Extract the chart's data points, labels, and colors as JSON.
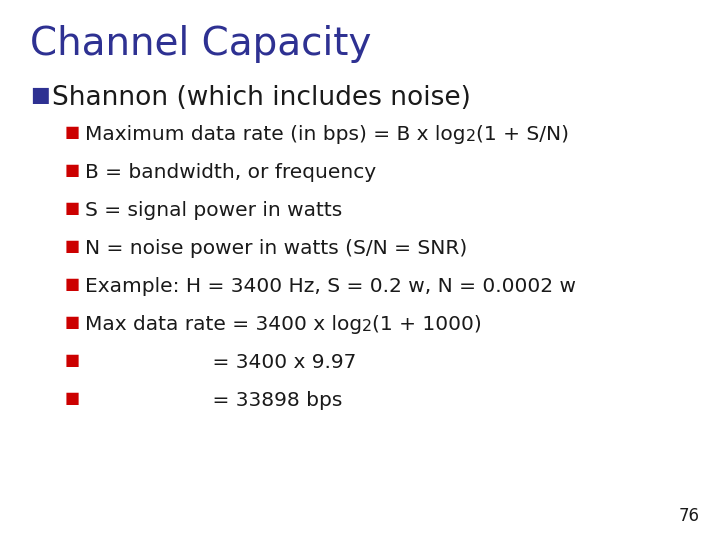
{
  "title": "Channel Capacity",
  "title_color": "#2E3192",
  "title_fontsize": 28,
  "background_color": "#FFFFFF",
  "bullet1_text": "Shannon (which includes noise)",
  "bullet1_color": "#1A1A1A",
  "bullet1_marker_color": "#2E3192",
  "bullet1_fontsize": 19,
  "sub_bullet_color": "#1A1A1A",
  "sub_bullet_marker_color": "#CC0000",
  "sub_bullet_fontsize": 14.5,
  "sub_bullets_plain": [
    [
      "Maximum data rate (in bps) = B x log",
      "2",
      "(1 + S/N)"
    ],
    [
      "B = bandwidth, or frequency",
      "",
      ""
    ],
    [
      "S = signal power in watts",
      "",
      ""
    ],
    [
      "N = noise power in watts (S/N = SNR)",
      "",
      ""
    ],
    [
      "Example: H = 3400 Hz, S = 0.2 w, N = 0.0002 w",
      "",
      ""
    ],
    [
      "Max data rate = 3400 x log",
      "2",
      "(1 + 1000)"
    ],
    [
      "                    = 3400 x 9.97",
      "",
      ""
    ],
    [
      "                    = 33898 bps",
      "",
      ""
    ]
  ],
  "page_number": "76",
  "page_number_fontsize": 12,
  "page_number_color": "#1A1A1A"
}
